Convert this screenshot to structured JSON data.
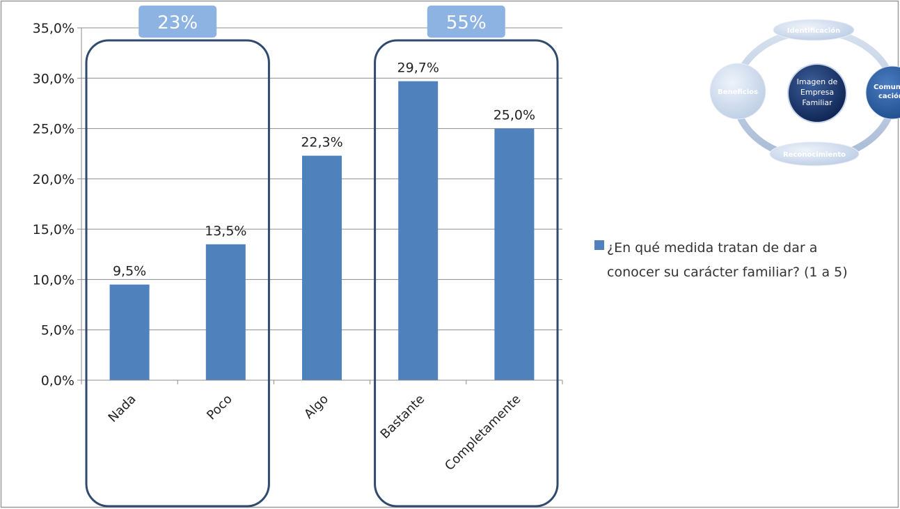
{
  "chart_data": {
    "type": "bar",
    "categories": [
      "Nada",
      "Poco",
      "Algo",
      "Bastante",
      "Completamente"
    ],
    "series": [
      {
        "name": "¿En qué medida tratan de dar a conocer su carácter familiar? (1 a 5)",
        "values": [
          9.5,
          13.5,
          22.3,
          29.7,
          25.0
        ]
      }
    ],
    "data_labels": [
      "9,5%",
      "13,5%",
      "22,3%",
      "29,7%",
      "25,0%"
    ],
    "y_ticks": [
      "0,0%",
      "5,0%",
      "10,0%",
      "15,0%",
      "20,0%",
      "25,0%",
      "30,0%",
      "35,0%"
    ],
    "ylim": [
      0,
      35
    ],
    "grid": true,
    "legend_lines": [
      "¿En qué medida tratan de dar a",
      "conocer su carácter familiar? (1 a 5)"
    ],
    "legend_position": "right",
    "bar_color": "#4f81bd"
  },
  "annotations": {
    "groups": [
      {
        "badge": "23%",
        "categories": [
          "Nada",
          "Poco"
        ]
      },
      {
        "badge": "55%",
        "categories": [
          "Bastante",
          "Completamente"
        ]
      }
    ],
    "badge_color": "#8db3e2",
    "outline_color": "#2f4a6e"
  },
  "diagram": {
    "center_lines": [
      "Imagen de",
      "Empresa",
      "Familiar"
    ],
    "top": "Identificación",
    "right_lines": [
      "Comun",
      "cación"
    ],
    "bottom": "Reconocimiento",
    "left": "Beneficios"
  }
}
